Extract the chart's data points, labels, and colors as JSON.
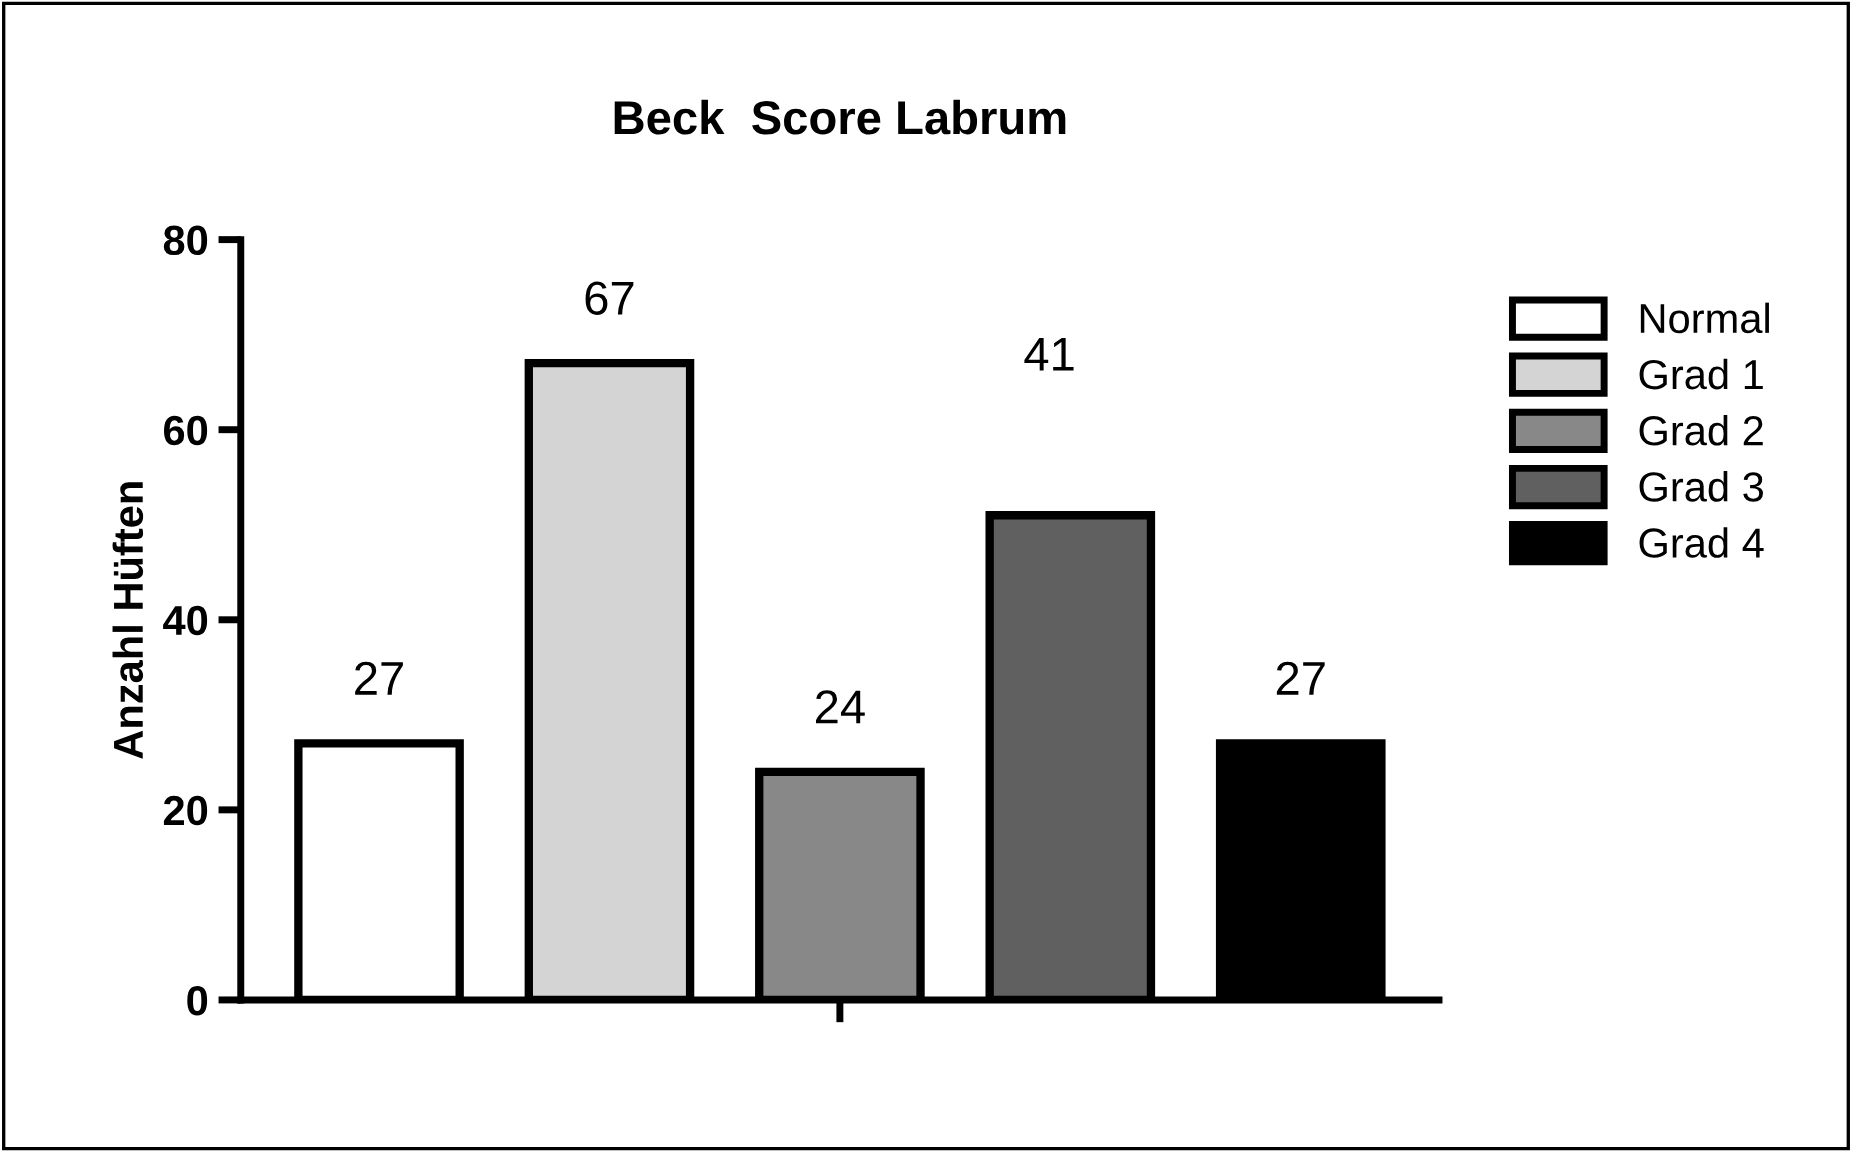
{
  "chart_data": {
    "type": "bar",
    "title": "Beck  Score Labrum",
    "ylabel": "Anzahl Hüften",
    "categories": [
      null,
      null,
      null,
      null,
      null
    ],
    "series": [
      {
        "name": "Normal",
        "color": "#ffffff",
        "values": [
          27,
          null,
          null,
          null,
          null
        ],
        "value_labels": [
          "27",
          null,
          null,
          null,
          null
        ]
      },
      {
        "name": "Grad 1",
        "color": "#d4d4d4",
        "values": [
          null,
          67,
          null,
          null,
          null
        ],
        "value_labels": [
          null,
          "67",
          null,
          null,
          null
        ]
      },
      {
        "name": "Grad 2",
        "color": "#888888",
        "values": [
          null,
          null,
          24,
          null,
          null
        ],
        "value_labels": [
          null,
          null,
          "24",
          null,
          null
        ]
      },
      {
        "name": "Grad 3",
        "color": "#606060",
        "values": [
          null,
          null,
          null,
          51,
          null
        ],
        "value_labels": [
          null,
          null,
          null,
          null,
          null
        ]
      },
      {
        "name": "Grad 4",
        "color": "#000000",
        "values": [
          null,
          null,
          null,
          null,
          27
        ],
        "value_labels": [
          null,
          null,
          null,
          null,
          "27"
        ]
      }
    ],
    "ylim": [
      0,
      80
    ],
    "yticks": [
      0,
      20,
      40,
      60,
      80
    ],
    "grid": false,
    "legend": "right",
    "annotations": [
      "41"
    ]
  }
}
